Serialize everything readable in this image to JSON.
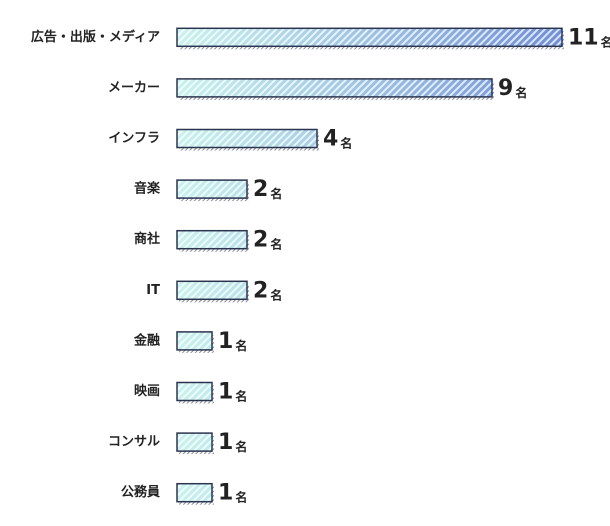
{
  "chart_data": {
    "type": "bar",
    "orientation": "horizontal",
    "categories": [
      "広告・出版・メディア",
      "メーカー",
      "インフラ",
      "音楽",
      "商社",
      "IT",
      "金融",
      "映画",
      "コンサル",
      "公務員"
    ],
    "values": [
      11,
      9,
      4,
      2,
      2,
      2,
      1,
      1,
      1,
      1
    ],
    "unit": "名",
    "colors": [
      "#c8f3ee",
      "#6f8fd8"
    ],
    "border_color": "#2c3550",
    "xlim": [
      0,
      11
    ]
  }
}
